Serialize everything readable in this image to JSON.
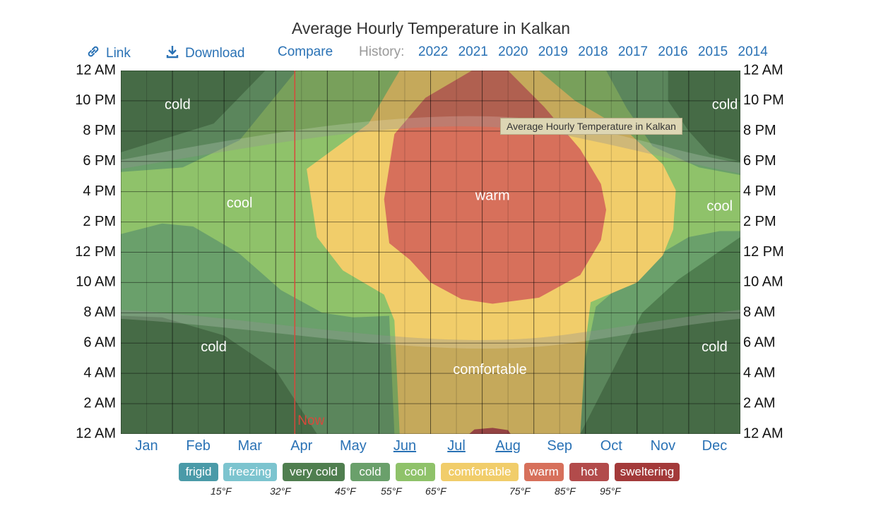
{
  "chart_data": {
    "type": "heatmap",
    "title": "Average Hourly Temperature in Kalkan",
    "x_tick_labels": [
      "Jan",
      "Feb",
      "Mar",
      "Apr",
      "May",
      "Jun",
      "Jul",
      "Aug",
      "Sep",
      "Oct",
      "Nov",
      "Dec"
    ],
    "y_tick_labels": [
      "12 AM",
      "2 AM",
      "4 AM",
      "6 AM",
      "8 AM",
      "10 AM",
      "12 PM",
      "2 PM",
      "4 PM",
      "6 PM",
      "8 PM",
      "10 PM",
      "12 AM"
    ],
    "y_range_hours": [
      0,
      24
    ],
    "x_range_months": [
      0,
      12
    ],
    "bands": [
      {
        "label": "frigid",
        "color": "#4a9aa8"
      },
      {
        "label": "freezing",
        "color": "#7cc4cf"
      },
      {
        "label": "very cold",
        "color": "#4f7e4f"
      },
      {
        "label": "cold",
        "color": "#6aa06b"
      },
      {
        "label": "cool",
        "color": "#8fc26a"
      },
      {
        "label": "comfortable",
        "color": "#f1cd6a"
      },
      {
        "label": "warm",
        "color": "#d7705b"
      },
      {
        "label": "hot",
        "color": "#b24b4b"
      },
      {
        "label": "sweltering",
        "color": "#a33a3a"
      }
    ],
    "band_thresholds": [
      "15°F",
      "32°F",
      "45°F",
      "55°F",
      "65°F",
      "75°F",
      "85°F",
      "95°F"
    ],
    "region_labels": [
      {
        "text": "cold",
        "month": 1.1,
        "hour": 21.7
      },
      {
        "text": "cold",
        "month": 11.7,
        "hour": 21.7
      },
      {
        "text": "cool",
        "month": 2.3,
        "hour": 15.2
      },
      {
        "text": "cool",
        "month": 11.6,
        "hour": 15.0
      },
      {
        "text": "warm",
        "month": 7.2,
        "hour": 15.7
      },
      {
        "text": "cold",
        "month": 1.8,
        "hour": 5.7
      },
      {
        "text": "cold",
        "month": 11.5,
        "hour": 5.7
      },
      {
        "text": "comfortable",
        "month": 7.15,
        "hour": 4.2
      }
    ],
    "now_marker": {
      "label": "Now",
      "month": 3.37
    }
  },
  "toolbar": {
    "link_label": "Link",
    "download_label": "Download",
    "compare_label": "Compare",
    "history_label": "History:",
    "years": [
      "2022",
      "2021",
      "2020",
      "2019",
      "2018",
      "2017",
      "2016",
      "2015",
      "2014"
    ]
  },
  "tooltip": "Average Hourly Temperature in Kalkan"
}
